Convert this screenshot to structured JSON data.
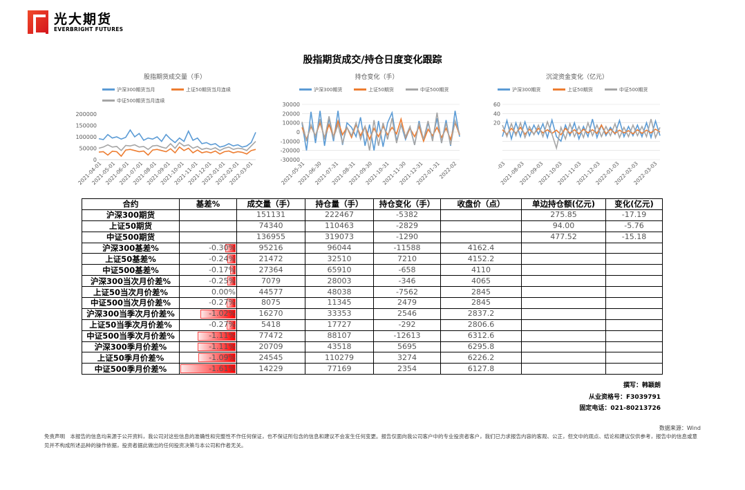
{
  "header": {
    "logo_cn": "光大期货",
    "logo_en": "EVERBRIGHT FUTURES",
    "title": "股指期货成交/持仓日度变化跟踪"
  },
  "colors": {
    "hs300": "#5b9bd5",
    "sz50": "#ed7d31",
    "zz500": "#a5a5a5"
  },
  "chart_data": [
    {
      "type": "line",
      "title": "股指期货成交量（手）",
      "legend": [
        "沪深300期货当月",
        "上证50期货当月连续",
        "中证500期货当月连续"
      ],
      "legend_placement": "top",
      "ylim": [
        0,
        200000
      ],
      "yticks": [
        "200000",
        "150000",
        "100000",
        "50000",
        "0"
      ],
      "ytick_values": [
        200000,
        150000,
        100000,
        50000,
        0
      ],
      "xticks": [
        "2021-04-01",
        "2021-05-01",
        "2021-06-01",
        "2021-07-01",
        "2021-08-01",
        "2021-09-01",
        "2021-10-01",
        "2021-11-01",
        "2021-12-01",
        "2022-01-01",
        "2022-02-01",
        "2022-03-01"
      ],
      "grid": false,
      "series": [
        {
          "name": "沪深300期货当月",
          "values": [
            92000,
            88000,
            110000,
            95000,
            100000,
            90000,
            98000,
            130000,
            100000,
            115000,
            85000,
            95000,
            90000,
            100000,
            80000,
            110000,
            90000,
            75000,
            95000,
            80000,
            125000,
            85000,
            95000,
            70000,
            75000,
            65000,
            70000,
            55000,
            60000,
            70000,
            60000,
            65000,
            55000,
            60000,
            75000,
            120000
          ]
        },
        {
          "name": "上证50期货当月连续",
          "values": [
            33000,
            35000,
            20000,
            37000,
            35000,
            15000,
            42000,
            45000,
            40000,
            35000,
            38000,
            20000,
            42000,
            45000,
            40000,
            35000,
            48000,
            30000,
            55000,
            40000,
            50000,
            30000,
            42000,
            30000,
            35000,
            30000,
            38000,
            25000,
            35000,
            38000,
            30000,
            35000,
            32000,
            25000,
            40000,
            45000
          ]
        },
        {
          "name": "中证500期货当月连续",
          "values": [
            50000,
            55000,
            65000,
            55000,
            58000,
            40000,
            62000,
            60000,
            65000,
            55000,
            58000,
            45000,
            60000,
            62000,
            55000,
            50000,
            70000,
            50000,
            75000,
            60000,
            65000,
            50000,
            58000,
            45000,
            50000,
            45000,
            52000,
            40000,
            50000,
            55000,
            45000,
            50000,
            48000,
            40000,
            60000,
            80000
          ]
        }
      ]
    },
    {
      "type": "line",
      "title": "持仓变化（手）",
      "legend": [
        "沪深300期货",
        "上证50期货",
        "中证500期货"
      ],
      "legend_placement": "top",
      "ylim": [
        -30000,
        30000
      ],
      "yticks": [
        "30000",
        "20000",
        "10000",
        "0",
        "-10000",
        "-20000",
        "-30000"
      ],
      "ytick_values": [
        30000,
        20000,
        10000,
        0,
        -10000,
        -20000,
        -30000
      ],
      "xticks": [
        "2021-05-31",
        "2021-06-30",
        "2021-07-31",
        "2021-08-31",
        "2021-09-30",
        "2021-10-31",
        "2021-11-30",
        "2021-12-31",
        "2022-01-31",
        "2022-02"
      ],
      "grid": true,
      "series": [
        {
          "name": "沪深300期货",
          "values": [
            10000,
            -20000,
            22000,
            -12000,
            23000,
            -15000,
            15000,
            -10000,
            23000,
            -14000,
            10000,
            5000,
            -5000,
            16000,
            -15000,
            8000,
            -20000,
            12000,
            -16000,
            10000,
            21000,
            -10000,
            8000,
            -8000,
            5000,
            -14000,
            12000,
            -10000,
            10000,
            -8000,
            15000,
            -12000,
            13000,
            -15000,
            23000,
            -5000
          ]
        },
        {
          "name": "上证50期货",
          "values": [
            5000,
            -8000,
            6000,
            -4000,
            10000,
            -6000,
            8000,
            -5000,
            12000,
            -3000,
            5000,
            -6000,
            8000,
            -4000,
            6000,
            -8000,
            4000,
            -5000,
            6000,
            -3000,
            5000,
            -2000,
            14000,
            -6000,
            4000,
            -5000,
            6000,
            -10000,
            3000,
            -4000,
            5000,
            -6000,
            4000,
            -8000,
            10000,
            -3000
          ]
        },
        {
          "name": "中证500期货",
          "values": [
            11000,
            -10000,
            8000,
            -5000,
            14000,
            -8000,
            17000,
            -6000,
            8000,
            -12000,
            5000,
            -4000,
            10000,
            -8000,
            6000,
            -20000,
            13000,
            -15000,
            10000,
            -8000,
            15000,
            -12000,
            8000,
            -5000,
            6000,
            -14000,
            10000,
            -8000,
            12000,
            -10000,
            21000,
            -12000,
            10000,
            -14000,
            12000,
            -2000
          ]
        }
      ]
    },
    {
      "type": "line",
      "title": "沉淀资金变化（亿元）",
      "legend": [
        "沪深300期货",
        "上证50期货",
        "中证500期货"
      ],
      "legend_placement": "top",
      "ylim": [
        -60,
        60
      ],
      "yticks": [
        "60",
        "40",
        "20"
      ],
      "ytick_values": [
        60,
        40,
        20
      ],
      "grid_values": [
        60,
        40,
        20,
        0,
        -20,
        -40,
        -60
      ],
      "xticks": [
        "-03",
        "2021-08-03",
        "2021-09-03",
        "2021-10-03",
        "2021-11-03",
        "2021-12-03",
        "2022-01-03",
        "2022-02-03",
        "2022-03-03"
      ],
      "grid": true,
      "series": [
        {
          "name": "沪深300期货",
          "values": [
            -10,
            25,
            -15,
            20,
            -10,
            22,
            -8,
            15,
            -5,
            18,
            -12,
            26,
            -10,
            -20,
            15,
            -8,
            20,
            -15,
            12,
            -10,
            28,
            -12,
            15,
            -8,
            10,
            -5,
            25,
            -10,
            12,
            -8,
            15,
            -10,
            20,
            -12,
            24,
            -8
          ]
        },
        {
          "name": "上证50期货",
          "values": [
            5,
            -5,
            8,
            -3,
            10,
            -5,
            6,
            -4,
            8,
            -2,
            5,
            -3,
            4,
            -6,
            8,
            -3,
            5,
            -4,
            6,
            -2,
            5,
            -3,
            15,
            -4,
            6,
            -3,
            4,
            -2,
            3,
            -4,
            5,
            -3,
            4,
            -2,
            6,
            0
          ]
        },
        {
          "name": "中证500期货",
          "values": [
            15,
            -10,
            18,
            -8,
            20,
            -12,
            12,
            -6,
            15,
            -10,
            22,
            -5,
            -35,
            10,
            -15,
            18,
            -10,
            12,
            -12,
            20,
            -8,
            15,
            -10,
            12,
            -8,
            18,
            -12,
            10,
            -10,
            15,
            -8,
            12,
            -10,
            28,
            -12,
            10
          ]
        }
      ]
    }
  ],
  "table": {
    "headers": [
      "合约",
      "基差%",
      "成交量（手）",
      "持仓量（手）",
      "持仓变化（手）",
      "收盘价（点）",
      "单边持仓额(亿元)",
      "变化(亿元)"
    ],
    "rows": [
      {
        "name": "沪深300期货",
        "basis": "",
        "basis_value": null,
        "vol": "151131",
        "oi": "222467",
        "chg": "-5382",
        "close": "",
        "amt": "275.85",
        "amt_chg": "-17.19",
        "flag": true
      },
      {
        "name": "上证50期货",
        "basis": "",
        "basis_value": null,
        "vol": "74340",
        "oi": "110463",
        "chg": "-2829",
        "close": "",
        "amt": "94.00",
        "amt_chg": "-5.76",
        "flag": true
      },
      {
        "name": "中证500期货",
        "basis": "",
        "basis_value": null,
        "vol": "136955",
        "oi": "319073",
        "chg": "-1290",
        "close": "",
        "amt": "477.52",
        "amt_chg": "-15.18",
        "flag": true
      },
      {
        "name": "沪深300基差%",
        "basis": "-0.30%",
        "basis_value": -0.3,
        "vol": "95216",
        "oi": "96044",
        "chg": "-11588",
        "close": "4162.4",
        "amt": "",
        "amt_chg": ""
      },
      {
        "name": "上证50基差%",
        "basis": "-0.24%",
        "basis_value": -0.24,
        "vol": "21472",
        "oi": "32510",
        "chg": "7210",
        "close": "4152.2",
        "amt": "",
        "amt_chg": ""
      },
      {
        "name": "中证500基差%",
        "basis": "-0.17%",
        "basis_value": -0.17,
        "vol": "27364",
        "oi": "65910",
        "chg": "-658",
        "close": "4110",
        "amt": "",
        "amt_chg": ""
      },
      {
        "name": "沪深300当次月价差%",
        "basis": "-0.25%",
        "basis_value": -0.25,
        "vol": "7079",
        "oi": "28003",
        "chg": "-346",
        "close": "4065",
        "amt": "",
        "amt_chg": ""
      },
      {
        "name": "上证50当次月价差%",
        "basis": "0.00%",
        "basis_value": 0,
        "vol": "44577",
        "oi": "48038",
        "chg": "-7562",
        "close": "2845",
        "amt": "",
        "amt_chg": ""
      },
      {
        "name": "中证500当次月价差%",
        "basis": "-0.27%",
        "basis_value": -0.27,
        "vol": "8075",
        "oi": "11345",
        "chg": "2479",
        "close": "2845",
        "amt": "",
        "amt_chg": ""
      },
      {
        "name": "沪深300当季次月价差%",
        "basis": "-1.02%",
        "basis_value": -1.02,
        "vol": "16270",
        "oi": "33353",
        "chg": "2546",
        "close": "2837.2",
        "amt": "",
        "amt_chg": ""
      },
      {
        "name": "上证50当季次月价差%",
        "basis": "-0.27%",
        "basis_value": -0.27,
        "vol": "5418",
        "oi": "17727",
        "chg": "-292",
        "close": "2806.6",
        "amt": "",
        "amt_chg": ""
      },
      {
        "name": "中证500当季次月价差%",
        "basis": "-1.11%",
        "basis_value": -1.11,
        "vol": "77472",
        "oi": "88107",
        "chg": "-12613",
        "close": "6312.6",
        "amt": "",
        "amt_chg": ""
      },
      {
        "name": "沪深300季月价差%",
        "basis": "-1.11%",
        "basis_value": -1.11,
        "vol": "20709",
        "oi": "43518",
        "chg": "5695",
        "close": "6295.8",
        "amt": "",
        "amt_chg": ""
      },
      {
        "name": "上证50季月价差%",
        "basis": "-1.09%",
        "basis_value": -1.09,
        "vol": "24545",
        "oi": "110279",
        "chg": "3274",
        "close": "6226.2",
        "amt": "",
        "amt_chg": ""
      },
      {
        "name": "中证500季月价差%",
        "basis": "-1.61%",
        "basis_value": -1.61,
        "vol": "14229",
        "oi": "77169",
        "chg": "2354",
        "close": "6127.8",
        "amt": "",
        "amt_chg": ""
      }
    ]
  },
  "footer": {
    "author": "撰写：韩颖朗",
    "license": "从业资格号：F3039791",
    "phone": "固定电话：021-80213726",
    "source": "数据来源：Wind",
    "disclaimer": "免责声明　本报告的信息均来源于公开资料，我公司对这些信息的准确性和完整性不作任何保证，也不保证所包含的信息和建议不会发生任何变更。报告仅面向我公司客户中的专业投资者客户，我们已力求报告内容的客观、公正，但文中的观点、结论和建议仅供参考，报告中的信息或意见并不构成所述品种的操作依据，投资者据此做出的任何投资决策与本公司和作者无关。"
  }
}
